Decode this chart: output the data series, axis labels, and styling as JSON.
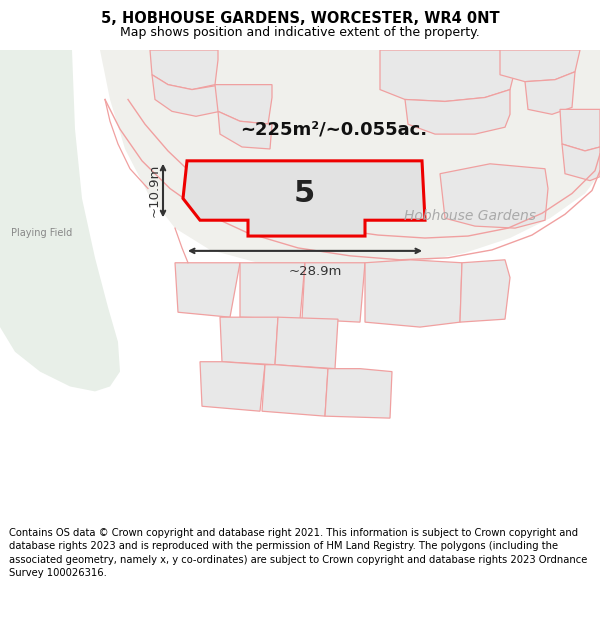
{
  "title": "5, HOBHOUSE GARDENS, WORCESTER, WR4 0NT",
  "subtitle": "Map shows position and indicative extent of the property.",
  "footer": "Contains OS data © Crown copyright and database right 2021. This information is subject to Crown copyright and database rights 2023 and is reproduced with the permission of HM Land Registry. The polygons (including the associated geometry, namely x, y co-ordinates) are subject to Crown copyright and database rights 2023 Ordnance Survey 100026316.",
  "map_bg": "#f7f7f5",
  "green_color": "#e8efe8",
  "plot_bg": "#e8e8e8",
  "plot_outline": "#f0a0a0",
  "highlight_fill": "#e2e2e2",
  "highlight_outline": "#ee0000",
  "area_label": "~225m²/~0.055ac.",
  "plot_number": "5",
  "dim_width": "~28.9m",
  "dim_height": "~10.9m",
  "street_label": "Hobhouse Gardens",
  "playing_field_label": "Playing Field",
  "title_fontsize": 10.5,
  "subtitle_fontsize": 9.0,
  "footer_fontsize": 7.2,
  "label_color": "#aaaaaa",
  "dim_color": "#333333",
  "area_label_fontsize": 13,
  "plot_num_fontsize": 22
}
